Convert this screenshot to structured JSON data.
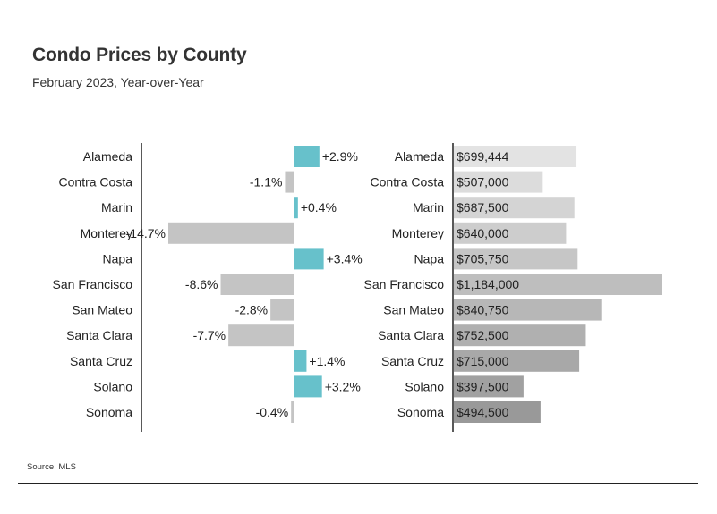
{
  "title": "Condo Prices by County",
  "subtitle": "February 2023, Year-over-Year",
  "source": "Source: MLS",
  "chart_data": [
    {
      "type": "bar",
      "orientation": "horizontal",
      "categories": [
        "Alameda",
        "Contra Costa",
        "Marin",
        "Monterey",
        "Napa",
        "San Francisco",
        "San Mateo",
        "Santa Clara",
        "Santa Cruz",
        "Solano",
        "Sonoma"
      ],
      "values": [
        2.9,
        -1.1,
        0.4,
        -14.7,
        3.4,
        -8.6,
        -2.8,
        -7.7,
        1.4,
        3.2,
        -0.4
      ],
      "labels": [
        "+2.9%",
        "-1.1%",
        "+0.4%",
        "-14.7%",
        "+3.4%",
        "-8.6%",
        "-2.8%",
        "-7.7%",
        "+1.4%",
        "+3.2%",
        "-0.4%"
      ],
      "colors": {
        "positive": "#67c1cb",
        "negative": "#c4c4c4"
      }
    },
    {
      "type": "bar",
      "orientation": "horizontal",
      "categories": [
        "Alameda",
        "Contra Costa",
        "Marin",
        "Monterey",
        "Napa",
        "San Francisco",
        "San Mateo",
        "Santa Clara",
        "Santa Cruz",
        "Solano",
        "Sonoma"
      ],
      "values": [
        699444,
        507000,
        687500,
        640000,
        705750,
        1184000,
        840750,
        752500,
        715000,
        397500,
        494500
      ],
      "labels": [
        "$699,444",
        "$507,000",
        "$687,500",
        "$640,000",
        "$705,750",
        "$1,184,000",
        "$840,750",
        "$752,500",
        "$715,000",
        "$397,500",
        "$494,500"
      ],
      "colors": [
        "#e3e3e3",
        "#dcdcdc",
        "#d4d4d4",
        "#cdcdcd",
        "#c6c6c6",
        "#bebebe",
        "#b7b7b7",
        "#b0b0b0",
        "#a8a8a8",
        "#a1a1a1",
        "#999999"
      ]
    }
  ]
}
